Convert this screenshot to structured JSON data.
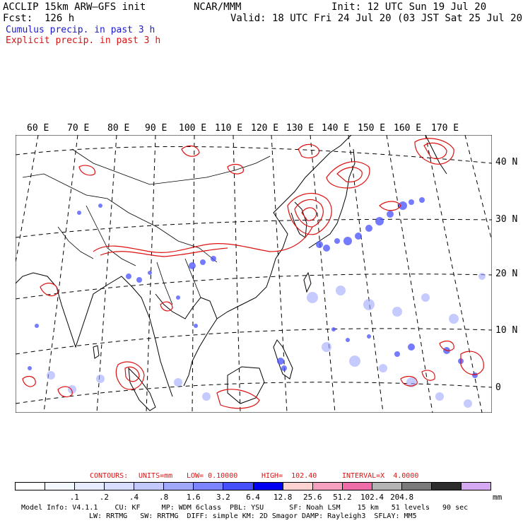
{
  "header": {
    "title": "ACCLIP 15km ARW–GFS init",
    "center": "NCAR/MMM",
    "init": "Init: 12 UTC Sun 19 Jul 20",
    "fcst": "Fcst:  126 h",
    "valid": "Valid: 18 UTC Fri 24 Jul 20 (03 JST Sat 25 Jul 20)",
    "legend_cumulus": "Cumulus precip. in past 3 h",
    "legend_explicit": "Explicit precip. in past 3 h"
  },
  "colors": {
    "cumulus": "#1a1acc",
    "explicit": "#dd1111",
    "land": "#ffffff",
    "border": "#000000"
  },
  "map": {
    "lon_labels": [
      "60 E",
      "70 E",
      "80 E",
      "90 E",
      "100 E",
      "110 E",
      "120 E",
      "130 E",
      "140 E",
      "150 E",
      "160 E",
      "170 E"
    ],
    "lat_labels": [
      "40 N",
      "30 N",
      "20 N",
      "10 N",
      "0"
    ]
  },
  "contours": {
    "label": "CONTOURS:",
    "units": "UNITS=mm",
    "low": "LOW= 0.10000",
    "high": "HIGH=  102.40",
    "interval": "INTERVAL=X  4.0000"
  },
  "colorbar": {
    "colors": [
      "#ffffff",
      "#f5f7ff",
      "#e8ecff",
      "#d8deff",
      "#c3c9ff",
      "#a0a8ff",
      "#7c84ff",
      "#4650ff",
      "#0000f0",
      "#ffd2d2",
      "#f5a0be",
      "#ee6ca8",
      "#b4b4b4",
      "#7a7a7a",
      "#2d2d2d",
      "#d7a8f2"
    ],
    "ticks": [
      ".1",
      ".2",
      ".4",
      ".8",
      "1.6",
      "3.2",
      "6.4",
      "12.8",
      "25.6",
      "51.2",
      "102.4",
      "204.8"
    ],
    "unit": "mm"
  },
  "footer": {
    "line1": "Model Info: V4.1.1    CU: KF     MP: WDM 6class  PBL: YSU      SF: Noah LSM    15 km   51 levels   90 sec",
    "line2": "LW: RRTMG   SW: RRTMG  DIFF: simple KM: 2D Smagor DAMP: Rayleigh3  SFLAY: MM5"
  }
}
